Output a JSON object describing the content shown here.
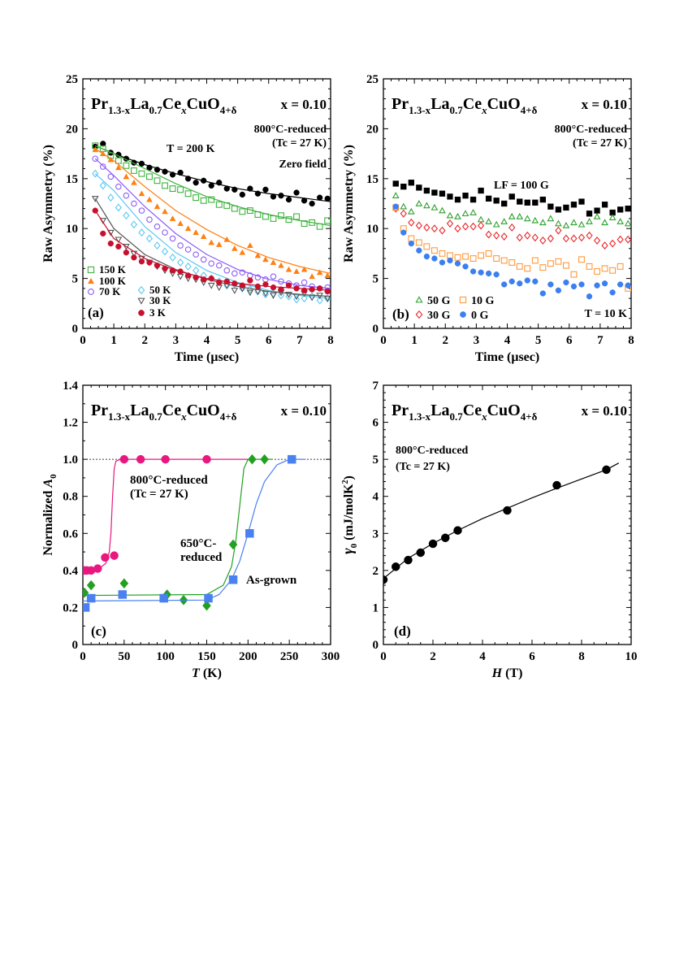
{
  "formula": [
    {
      "t": "Pr",
      "sub": false
    },
    {
      "t": "1.3-x",
      "sub": true
    },
    {
      "t": "La",
      "sub": false
    },
    {
      "t": "0.7",
      "sub": true
    },
    {
      "t": "Ce",
      "sub": false
    },
    {
      "t": "x",
      "sub": true
    },
    {
      "t": "CuO",
      "sub": false
    },
    {
      "t": "4+δ",
      "sub": true
    }
  ],
  "chart_data": [
    {
      "panel": "(a)",
      "type": "scatter",
      "xlabel": "Time (μsec)",
      "ylabel": "Raw Asymmetry (%)",
      "xlim": [
        0,
        8
      ],
      "ylim": [
        0,
        25
      ],
      "xticks": [
        "0",
        "1",
        "2",
        "3",
        "4",
        "5",
        "6",
        "7",
        "8"
      ],
      "yticks": [
        "0",
        "5",
        "10",
        "15",
        "20",
        "25"
      ],
      "annotations": {
        "composition": "x = 0.10",
        "sample": "800°C-reduced",
        "tc": "(Tc = 27 K)",
        "temp": "T = 200 K",
        "field": "Zero field"
      },
      "x": [
        0.4,
        0.65,
        0.9,
        1.15,
        1.4,
        1.65,
        1.9,
        2.15,
        2.4,
        2.65,
        2.9,
        3.15,
        3.4,
        3.65,
        3.9,
        4.15,
        4.4,
        4.65,
        4.9,
        5.15,
        5.4,
        5.65,
        5.9,
        6.15,
        6.4,
        6.65,
        6.9,
        7.15,
        7.4,
        7.65,
        7.9
      ],
      "fit_x": [
        0.4,
        1,
        2,
        3,
        4,
        5,
        6,
        7,
        8
      ],
      "series": [
        {
          "name": "",
          "marker": "circle-filled",
          "color": "#000000",
          "values": [
            18.2,
            18.5,
            17.6,
            17.4,
            17.0,
            16.6,
            16.5,
            16.1,
            15.9,
            15.7,
            15.4,
            15.6,
            15.0,
            14.6,
            14.8,
            14.3,
            14.6,
            14.0,
            13.9,
            13.4,
            14.0,
            13.5,
            13.9,
            13.2,
            13.3,
            12.9,
            13.6,
            12.8,
            12.5,
            13.1,
            13.0
          ],
          "fit": [
            18.3,
            17.5,
            16.4,
            15.5,
            14.7,
            14.0,
            13.5,
            13.1,
            12.7
          ]
        },
        {
          "name": "150 K",
          "marker": "square-open",
          "color": "#3cb33c",
          "values": [
            18.3,
            18.0,
            17.3,
            16.8,
            16.3,
            15.8,
            15.5,
            15.2,
            14.8,
            14.3,
            14.0,
            13.9,
            13.5,
            13.1,
            12.8,
            12.9,
            12.4,
            12.3,
            12.0,
            11.7,
            11.8,
            11.4,
            11.2,
            11.0,
            11.3,
            10.9,
            11.2,
            10.5,
            10.6,
            10.2,
            10.8
          ],
          "fit": [
            18.3,
            17.5,
            16.0,
            14.5,
            13.2,
            12.2,
            11.4,
            10.8,
            10.3
          ]
        },
        {
          "name": "100 K",
          "marker": "triangle-filled",
          "color": "#ff7f11",
          "values": [
            17.9,
            17.5,
            16.9,
            16.1,
            15.2,
            14.6,
            13.5,
            12.9,
            12.2,
            11.7,
            11.0,
            10.5,
            10.0,
            9.6,
            9.2,
            8.6,
            8.4,
            8.9,
            8.0,
            7.6,
            8.3,
            7.3,
            6.9,
            6.6,
            6.3,
            5.9,
            5.7,
            5.9,
            5.2,
            5.6,
            5.3
          ],
          "fit": [
            18.0,
            16.8,
            14.2,
            11.8,
            9.9,
            8.3,
            7.1,
            6.2,
            5.5
          ]
        },
        {
          "name": "70 K",
          "marker": "circle-open",
          "color": "#8b5cf6",
          "values": [
            17.0,
            16.2,
            15.2,
            14.2,
            13.3,
            12.5,
            11.8,
            10.9,
            10.2,
            9.6,
            9.0,
            8.3,
            7.9,
            7.4,
            6.9,
            6.5,
            6.3,
            5.8,
            5.5,
            5.6,
            5.3,
            5.1,
            4.9,
            5.2,
            4.7,
            4.5,
            4.3,
            4.6,
            4.2,
            4.0,
            4.1
          ],
          "fit": [
            17.0,
            15.3,
            12.2,
            9.5,
            7.4,
            5.9,
            4.9,
            4.3,
            4.0
          ]
        },
        {
          "name": "50 K",
          "marker": "diamond-open",
          "color": "#5cc8f0",
          "values": [
            15.5,
            14.3,
            13.1,
            12.1,
            11.3,
            10.4,
            9.6,
            9.0,
            8.3,
            7.7,
            7.1,
            6.6,
            6.2,
            5.8,
            5.3,
            5.0,
            4.7,
            4.3,
            4.4,
            4.0,
            3.9,
            3.7,
            3.4,
            3.5,
            3.3,
            3.2,
            2.9,
            3.0,
            3.2,
            2.8,
            3.0
          ],
          "fit": [
            15.5,
            13.8,
            10.2,
            7.6,
            5.8,
            4.6,
            3.8,
            3.3,
            3.0
          ]
        },
        {
          "name": "30 K",
          "marker": "triangle-down-open",
          "color": "#555555",
          "values": [
            13.0,
            10.8,
            9.6,
            8.9,
            8.2,
            7.5,
            7.0,
            6.6,
            6.2,
            5.8,
            5.5,
            5.2,
            5.0,
            4.9,
            4.6,
            4.3,
            4.1,
            4.3,
            3.8,
            4.0,
            3.6,
            3.7,
            3.5,
            3.3,
            3.6,
            3.4,
            3.2,
            3.5,
            3.1,
            3.3,
            3.0
          ],
          "fit": [
            13.0,
            10.0,
            7.4,
            5.9,
            4.9,
            4.2,
            3.7,
            3.4,
            3.2
          ]
        },
        {
          "name": "3 K",
          "marker": "circle-filled",
          "color": "#c8102e",
          "values": [
            11.8,
            9.5,
            8.5,
            8.2,
            7.6,
            7.1,
            6.7,
            6.6,
            6.3,
            6.0,
            5.8,
            5.7,
            5.3,
            5.1,
            4.9,
            5.0,
            4.6,
            4.7,
            4.5,
            4.3,
            4.8,
            4.2,
            4.4,
            4.1,
            3.9,
            4.3,
            4.0,
            3.8,
            3.9,
            4.0,
            3.7
          ],
          "fit": [
            11.8,
            9.0,
            7.0,
            5.8,
            5.0,
            4.5,
            4.2,
            4.0,
            3.8
          ]
        }
      ]
    },
    {
      "panel": "(b)",
      "type": "scatter",
      "xlabel": "Time (μsec)",
      "ylabel": "Raw Asymmetry (%)",
      "xlim": [
        0,
        8
      ],
      "ylim": [
        0,
        25
      ],
      "xticks": [
        "0",
        "1",
        "2",
        "3",
        "4",
        "5",
        "6",
        "7",
        "8"
      ],
      "yticks": [
        "0",
        "5",
        "10",
        "15",
        "20",
        "25"
      ],
      "annotations": {
        "composition": "x = 0.10",
        "sample": "800°C-reduced",
        "tc": "(Tc = 27 K)",
        "field": "LF = 100 G",
        "temp": "T = 10 K"
      },
      "x": [
        0.4,
        0.65,
        0.9,
        1.15,
        1.4,
        1.65,
        1.9,
        2.15,
        2.4,
        2.65,
        2.9,
        3.15,
        3.4,
        3.65,
        3.9,
        4.15,
        4.4,
        4.65,
        4.9,
        5.15,
        5.4,
        5.65,
        5.9,
        6.15,
        6.4,
        6.65,
        6.9,
        7.15,
        7.4,
        7.65,
        7.9
      ],
      "series": [
        {
          "name": "",
          "marker": "square-filled",
          "color": "#000000",
          "values": [
            14.5,
            14.2,
            14.6,
            14.1,
            13.8,
            13.6,
            13.5,
            13.2,
            12.9,
            13.3,
            12.9,
            13.8,
            13.0,
            12.8,
            12.5,
            13.2,
            12.7,
            12.6,
            12.6,
            12.9,
            12.2,
            11.9,
            12.1,
            12.4,
            12.7,
            11.5,
            11.8,
            12.4,
            11.6,
            11.9,
            12.0
          ]
        },
        {
          "name": "50 G",
          "marker": "triangle-open",
          "color": "#2ca02c",
          "values": [
            13.3,
            12.2,
            11.7,
            12.5,
            12.3,
            12.1,
            11.8,
            11.3,
            11.2,
            11.5,
            11.6,
            10.9,
            10.7,
            10.4,
            10.7,
            11.2,
            11.2,
            11.0,
            10.8,
            10.6,
            11.0,
            10.5,
            10.3,
            10.6,
            10.4,
            10.7,
            11.2,
            10.6,
            11.1,
            10.7,
            10.5
          ]
        },
        {
          "name": "30 G",
          "marker": "diamond-open",
          "color": "#e8262b",
          "values": [
            12.0,
            11.5,
            10.6,
            10.3,
            10.1,
            10.0,
            9.8,
            10.5,
            10.0,
            10.2,
            10.2,
            10.3,
            9.4,
            9.3,
            9.2,
            10.1,
            9.1,
            9.3,
            9.1,
            8.8,
            9.0,
            9.8,
            9.0,
            9.0,
            9.1,
            9.3,
            8.8,
            8.3,
            8.5,
            8.9,
            8.9
          ]
        },
        {
          "name": "10 G",
          "marker": "square-open",
          "color": "#ff9a3c",
          "values": [
            12.1,
            10.0,
            9.0,
            8.6,
            8.2,
            7.8,
            7.5,
            7.3,
            7.1,
            7.2,
            7.0,
            7.3,
            7.5,
            7.0,
            6.8,
            6.6,
            6.2,
            6.0,
            6.8,
            6.1,
            6.5,
            6.7,
            6.3,
            5.4,
            6.9,
            6.2,
            5.7,
            6.0,
            5.8,
            6.2,
            4.0
          ]
        },
        {
          "name": "0 G",
          "marker": "circle-filled",
          "color": "#3b7ff0",
          "values": [
            12.2,
            9.6,
            8.5,
            7.8,
            7.2,
            7.0,
            6.6,
            6.8,
            6.5,
            6.2,
            5.7,
            5.6,
            5.5,
            5.4,
            4.4,
            4.7,
            4.5,
            4.8,
            4.7,
            3.5,
            4.4,
            3.8,
            4.6,
            4.2,
            4.4,
            3.2,
            4.3,
            4.5,
            3.6,
            4.4,
            4.3
          ]
        }
      ]
    },
    {
      "panel": "(c)",
      "type": "scatter",
      "xlabel_italic": "T",
      "xlabel_rest": " (K)",
      "ylabel_prefix": "Normalized ",
      "ylabel_italic": "A",
      "ylabel_sub": "0",
      "xlim": [
        0,
        300
      ],
      "ylim": [
        0,
        1.4
      ],
      "xticks": [
        "0",
        "50",
        "100",
        "150",
        "200",
        "250",
        "300"
      ],
      "yticks": [
        "0",
        "0.2",
        "0.4",
        "0.6",
        "0.8",
        "1.0",
        "1.2",
        "1.4"
      ],
      "reference_line": 1.0,
      "annotations": {
        "composition": "x = 0.10",
        "s800": "800°C-reduced",
        "tc": "(Tc = 27 K)",
        "s650a": "650°C-",
        "s650b": "reduced",
        "asgrown": "As-grown"
      },
      "series": [
        {
          "name": "800°C-reduced",
          "marker": "circle-filled",
          "color": "#e8187f",
          "x": [
            2,
            5,
            10,
            18,
            27,
            38,
            50,
            70,
            100,
            150
          ],
          "y": [
            0.4,
            0.4,
            0.4,
            0.41,
            0.47,
            0.48,
            1.0,
            1.0,
            1.0,
            1.0
          ],
          "fit_x": [
            0,
            20,
            28,
            32,
            34,
            36,
            38,
            40,
            45,
            50,
            200
          ],
          "fit_y": [
            0.4,
            0.41,
            0.44,
            0.5,
            0.6,
            0.8,
            0.95,
            0.99,
            1.0,
            1.0,
            1.0
          ]
        },
        {
          "name": "650°C-reduced",
          "marker": "diamond-filled",
          "color": "#22a022",
          "x": [
            2,
            10,
            50,
            102,
            122,
            150,
            182,
            205,
            220
          ],
          "y": [
            0.28,
            0.32,
            0.33,
            0.27,
            0.24,
            0.21,
            0.54,
            1.0,
            1.0
          ],
          "fit_x": [
            0,
            150,
            170,
            180,
            185,
            190,
            195,
            200,
            230
          ],
          "fit_y": [
            0.265,
            0.27,
            0.32,
            0.42,
            0.55,
            0.75,
            0.95,
            1.0,
            1.0
          ]
        },
        {
          "name": "As-grown",
          "marker": "square-filled",
          "color": "#4a80f0",
          "x": [
            3,
            10,
            48,
            98,
            152,
            182,
            202,
            253
          ],
          "y": [
            0.2,
            0.25,
            0.27,
            0.25,
            0.25,
            0.35,
            0.6,
            1.0
          ],
          "fit_x": [
            0,
            150,
            165,
            180,
            190,
            200,
            210,
            220,
            235,
            250,
            270
          ],
          "fit_y": [
            0.235,
            0.24,
            0.27,
            0.35,
            0.45,
            0.6,
            0.76,
            0.88,
            0.97,
            1.0,
            1.0
          ]
        }
      ]
    },
    {
      "panel": "(d)",
      "type": "scatter",
      "xlabel_italic": "H",
      "xlabel_rest": " (T)",
      "ylabel_greek": "γ",
      "ylabel_sub": "0",
      "ylabel_rest": " (mJ/molK",
      "ylabel_sup": "2",
      "ylabel_end": ")",
      "xlim": [
        0,
        10
      ],
      "ylim": [
        0,
        7
      ],
      "xticks": [
        "0",
        "2",
        "4",
        "6",
        "8",
        "10"
      ],
      "yticks": [
        "0",
        "1",
        "2",
        "3",
        "4",
        "5",
        "6",
        "7"
      ],
      "annotations": {
        "composition": "x = 0.10",
        "sample": "800°C-reduced",
        "tc": "(Tc = 27 K)"
      },
      "series": [
        {
          "name": "",
          "marker": "circle-filled",
          "color": "#000000",
          "x": [
            0,
            0.5,
            1,
            1.5,
            2,
            2.5,
            3,
            5,
            7,
            9
          ],
          "y": [
            1.75,
            2.1,
            2.28,
            2.48,
            2.72,
            2.88,
            3.08,
            3.62,
            4.3,
            4.72
          ],
          "fit_x": [
            0,
            1,
            2,
            3,
            4,
            5,
            6,
            7,
            8,
            9,
            9.5
          ],
          "fit_y": [
            1.78,
            2.33,
            2.73,
            3.08,
            3.4,
            3.68,
            3.96,
            4.22,
            4.47,
            4.72,
            4.9
          ]
        }
      ]
    }
  ]
}
